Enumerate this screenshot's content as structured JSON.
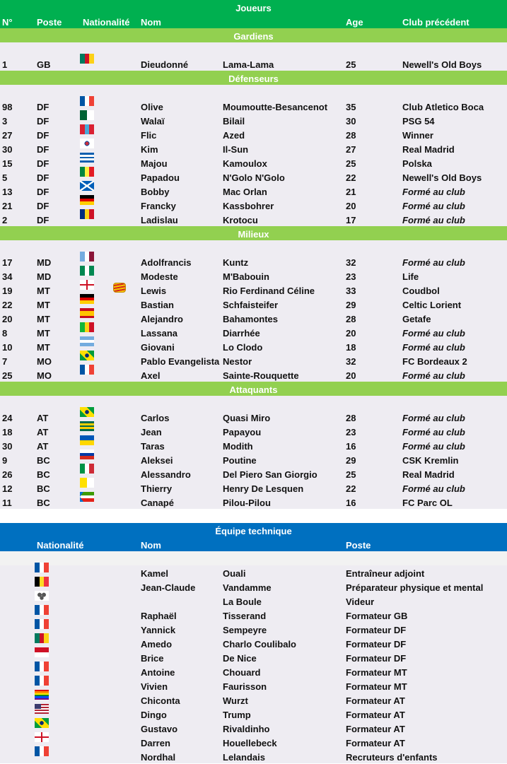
{
  "players": {
    "title": "Joueurs",
    "headers": {
      "num": "N°",
      "poste": "Poste",
      "nat": "Nationalité",
      "nom": "Nom",
      "age": "Age",
      "club": "Club précédent"
    },
    "sections": [
      {
        "label": "Gardiens",
        "rows": [
          {
            "num": "1",
            "poste": "GB",
            "flag": "cameroon",
            "prenom": "Dieudonné",
            "nom": "Lama-Lama",
            "age": "25",
            "club": "Newell's Old Boys"
          }
        ]
      },
      {
        "label": "Défenseurs",
        "rows": [
          {
            "num": "98",
            "poste": "DF",
            "flag": "france",
            "prenom": "Olive",
            "nom": "Moumoutte-Besancenot",
            "age": "35",
            "club": "Club Atletico Boca"
          },
          {
            "num": "3",
            "poste": "DF",
            "flag": "algeria",
            "prenom": "Walaï",
            "nom": "Bilail",
            "age": "30",
            "club": "PSG 54"
          },
          {
            "num": "27",
            "poste": "DF",
            "flag": "mongolia",
            "prenom": "Flic",
            "nom": "Azed",
            "age": "28",
            "club": "Winner"
          },
          {
            "num": "30",
            "poste": "DF",
            "flag": "south-korea",
            "prenom": "Kim",
            "nom": "Il-Sun",
            "age": "27",
            "club": "Real Madrid"
          },
          {
            "num": "15",
            "poste": "DF",
            "flag": "greece",
            "prenom": "Majou",
            "nom": "Kamoulox",
            "age": "25",
            "club": "Polska"
          },
          {
            "num": "5",
            "poste": "DF",
            "flag": "senegal",
            "prenom": "Papadou",
            "nom": "N'Golo N'Golo",
            "age": "22",
            "club": "Newell's Old Boys"
          },
          {
            "num": "13",
            "poste": "DF",
            "flag": "scotland",
            "prenom": "Bobby",
            "nom": "Mac Orlan",
            "age": "21",
            "club": "Formé au club"
          },
          {
            "num": "21",
            "poste": "DF",
            "flag": "germany",
            "prenom": "Francky",
            "nom": "Kassbohrer",
            "age": "20",
            "club": "Formé au club"
          },
          {
            "num": "2",
            "poste": "DF",
            "flag": "romania",
            "prenom": "Ladislau",
            "nom": "Krotocu",
            "age": "17",
            "club": "Formé au club"
          }
        ]
      },
      {
        "label": "Milieux",
        "rows": [
          {
            "num": "17",
            "poste": "MD",
            "flag": "custom-blue-maroon",
            "prenom": "Adolfrancis",
            "nom": "Kuntz",
            "age": "32",
            "club": "Formé au club"
          },
          {
            "num": "34",
            "poste": "MD",
            "flag": "nigeria",
            "prenom": "Modeste",
            "nom": "M'Babouin",
            "age": "23",
            "club": "Life"
          },
          {
            "num": "19",
            "poste": "MT",
            "flag": "england",
            "badge": true,
            "prenom": "Lewis",
            "nom": "Rio Ferdinand Céline",
            "age": "33",
            "club": "Coudbol"
          },
          {
            "num": "22",
            "poste": "MT",
            "flag": "germany",
            "prenom": "Bastian",
            "nom": "Schfaisteifer",
            "age": "29",
            "club": "Celtic Lorient"
          },
          {
            "num": "20",
            "poste": "MT",
            "flag": "spain",
            "prenom": "Alejandro",
            "nom": "Bahamontes",
            "age": "28",
            "club": "Getafe"
          },
          {
            "num": "8",
            "poste": "MT",
            "flag": "mali",
            "prenom": "Lassana",
            "nom": "Diarrhée",
            "age": "20",
            "club": "Formé au club"
          },
          {
            "num": "10",
            "poste": "MT",
            "flag": "argentina",
            "prenom": "Giovani",
            "nom": "Lo Clodo",
            "age": "18",
            "club": "Formé au club"
          },
          {
            "num": "7",
            "poste": "MO",
            "flag": "brazil",
            "prenom": "Pablo Evangelista",
            "nom": "Nestor",
            "age": "32",
            "club": "FC Bordeaux 2"
          },
          {
            "num": "25",
            "poste": "MO",
            "flag": "france",
            "prenom": "Axel",
            "nom": "Sainte-Rouquette",
            "age": "20",
            "club": "Formé au club"
          }
        ]
      },
      {
        "label": "Attaquants",
        "rows": [
          {
            "num": "24",
            "poste": "AT",
            "flag": "brazil",
            "prenom": "Carlos",
            "nom": "Quasi Miro",
            "age": "28",
            "club": "Formé au club"
          },
          {
            "num": "18",
            "poste": "AT",
            "flag": "togo",
            "prenom": "Jean",
            "nom": "Papayou",
            "age": "23",
            "club": "Formé au club"
          },
          {
            "num": "30",
            "poste": "AT",
            "flag": "ukraine",
            "prenom": "Taras",
            "nom": "Modith",
            "age": "16",
            "club": "Formé au club"
          },
          {
            "num": "9",
            "poste": "BC",
            "flag": "russia",
            "prenom": "Aleksei",
            "nom": "Poutine",
            "age": "29",
            "club": "CSK Kremlin"
          },
          {
            "num": "26",
            "poste": "BC",
            "flag": "italy",
            "prenom": "Alessandro",
            "nom": "Del Piero San Giorgio",
            "age": "25",
            "club": "Real Madrid"
          },
          {
            "num": "12",
            "poste": "BC",
            "flag": "vatican",
            "prenom": "Thierry",
            "nom": "Henry De Lesquen",
            "age": "22",
            "club": "Formé au club"
          },
          {
            "num": "11",
            "poste": "BC",
            "flag": "equatorial-guinea",
            "prenom": "Canapé",
            "nom": "Pilou-Pilou",
            "age": "16",
            "club": "FC Parc OL"
          }
        ]
      }
    ]
  },
  "staff": {
    "title": "Équipe technique",
    "headers": {
      "nat": "Nationalité",
      "nom": "Nom",
      "poste": "Poste"
    },
    "rows": [
      {
        "flag": "france",
        "prenom": "Kamel",
        "nom": "Ouali",
        "poste": "Entraîneur adjoint"
      },
      {
        "flag": "belgium",
        "prenom": "Jean-Claude",
        "nom": "Vandamme",
        "poste": "Préparateur physique et mental"
      },
      {
        "flag": "triskell",
        "prenom": "",
        "nom": "La Boule",
        "poste": "Videur"
      },
      {
        "flag": "france",
        "prenom": "Raphaël",
        "nom": "Tisserand",
        "poste": "Formateur GB"
      },
      {
        "flag": "france",
        "prenom": "Yannick",
        "nom": "Sempeyre",
        "poste": "Formateur DF"
      },
      {
        "flag": "cameroon",
        "prenom": "Amedo",
        "nom": "Charlo Coulibalo",
        "poste": "Formateur DF"
      },
      {
        "flag": "monaco",
        "prenom": "Brice",
        "nom": "De Nice",
        "poste": "Formateur DF"
      },
      {
        "flag": "france",
        "prenom": "Antoine",
        "nom": "Chouard",
        "poste": "Formateur MT"
      },
      {
        "flag": "france",
        "prenom": "Vivien",
        "nom": "Faurisson",
        "poste": "Formateur MT"
      },
      {
        "flag": "rainbow",
        "prenom": "Chiconta",
        "nom": "Wurzt",
        "poste": "Formateur AT"
      },
      {
        "flag": "usa",
        "prenom": "Dingo",
        "nom": "Trump",
        "poste": "Formateur AT"
      },
      {
        "flag": "brazil",
        "prenom": "Gustavo",
        "nom": "Rivaldinho",
        "poste": "Formateur AT"
      },
      {
        "flag": "england",
        "prenom": "Darren",
        "nom": "Houellebeck",
        "poste": "Formateur AT"
      },
      {
        "flag": "france",
        "prenom": "Nordhal",
        "nom": "Lelandais",
        "poste": "Recruteurs d'enfants"
      }
    ]
  },
  "colors": {
    "header_green": "#00b050",
    "section_green": "#92d050",
    "staff_blue": "#0070c0",
    "row_bg": "#eeecf2"
  }
}
